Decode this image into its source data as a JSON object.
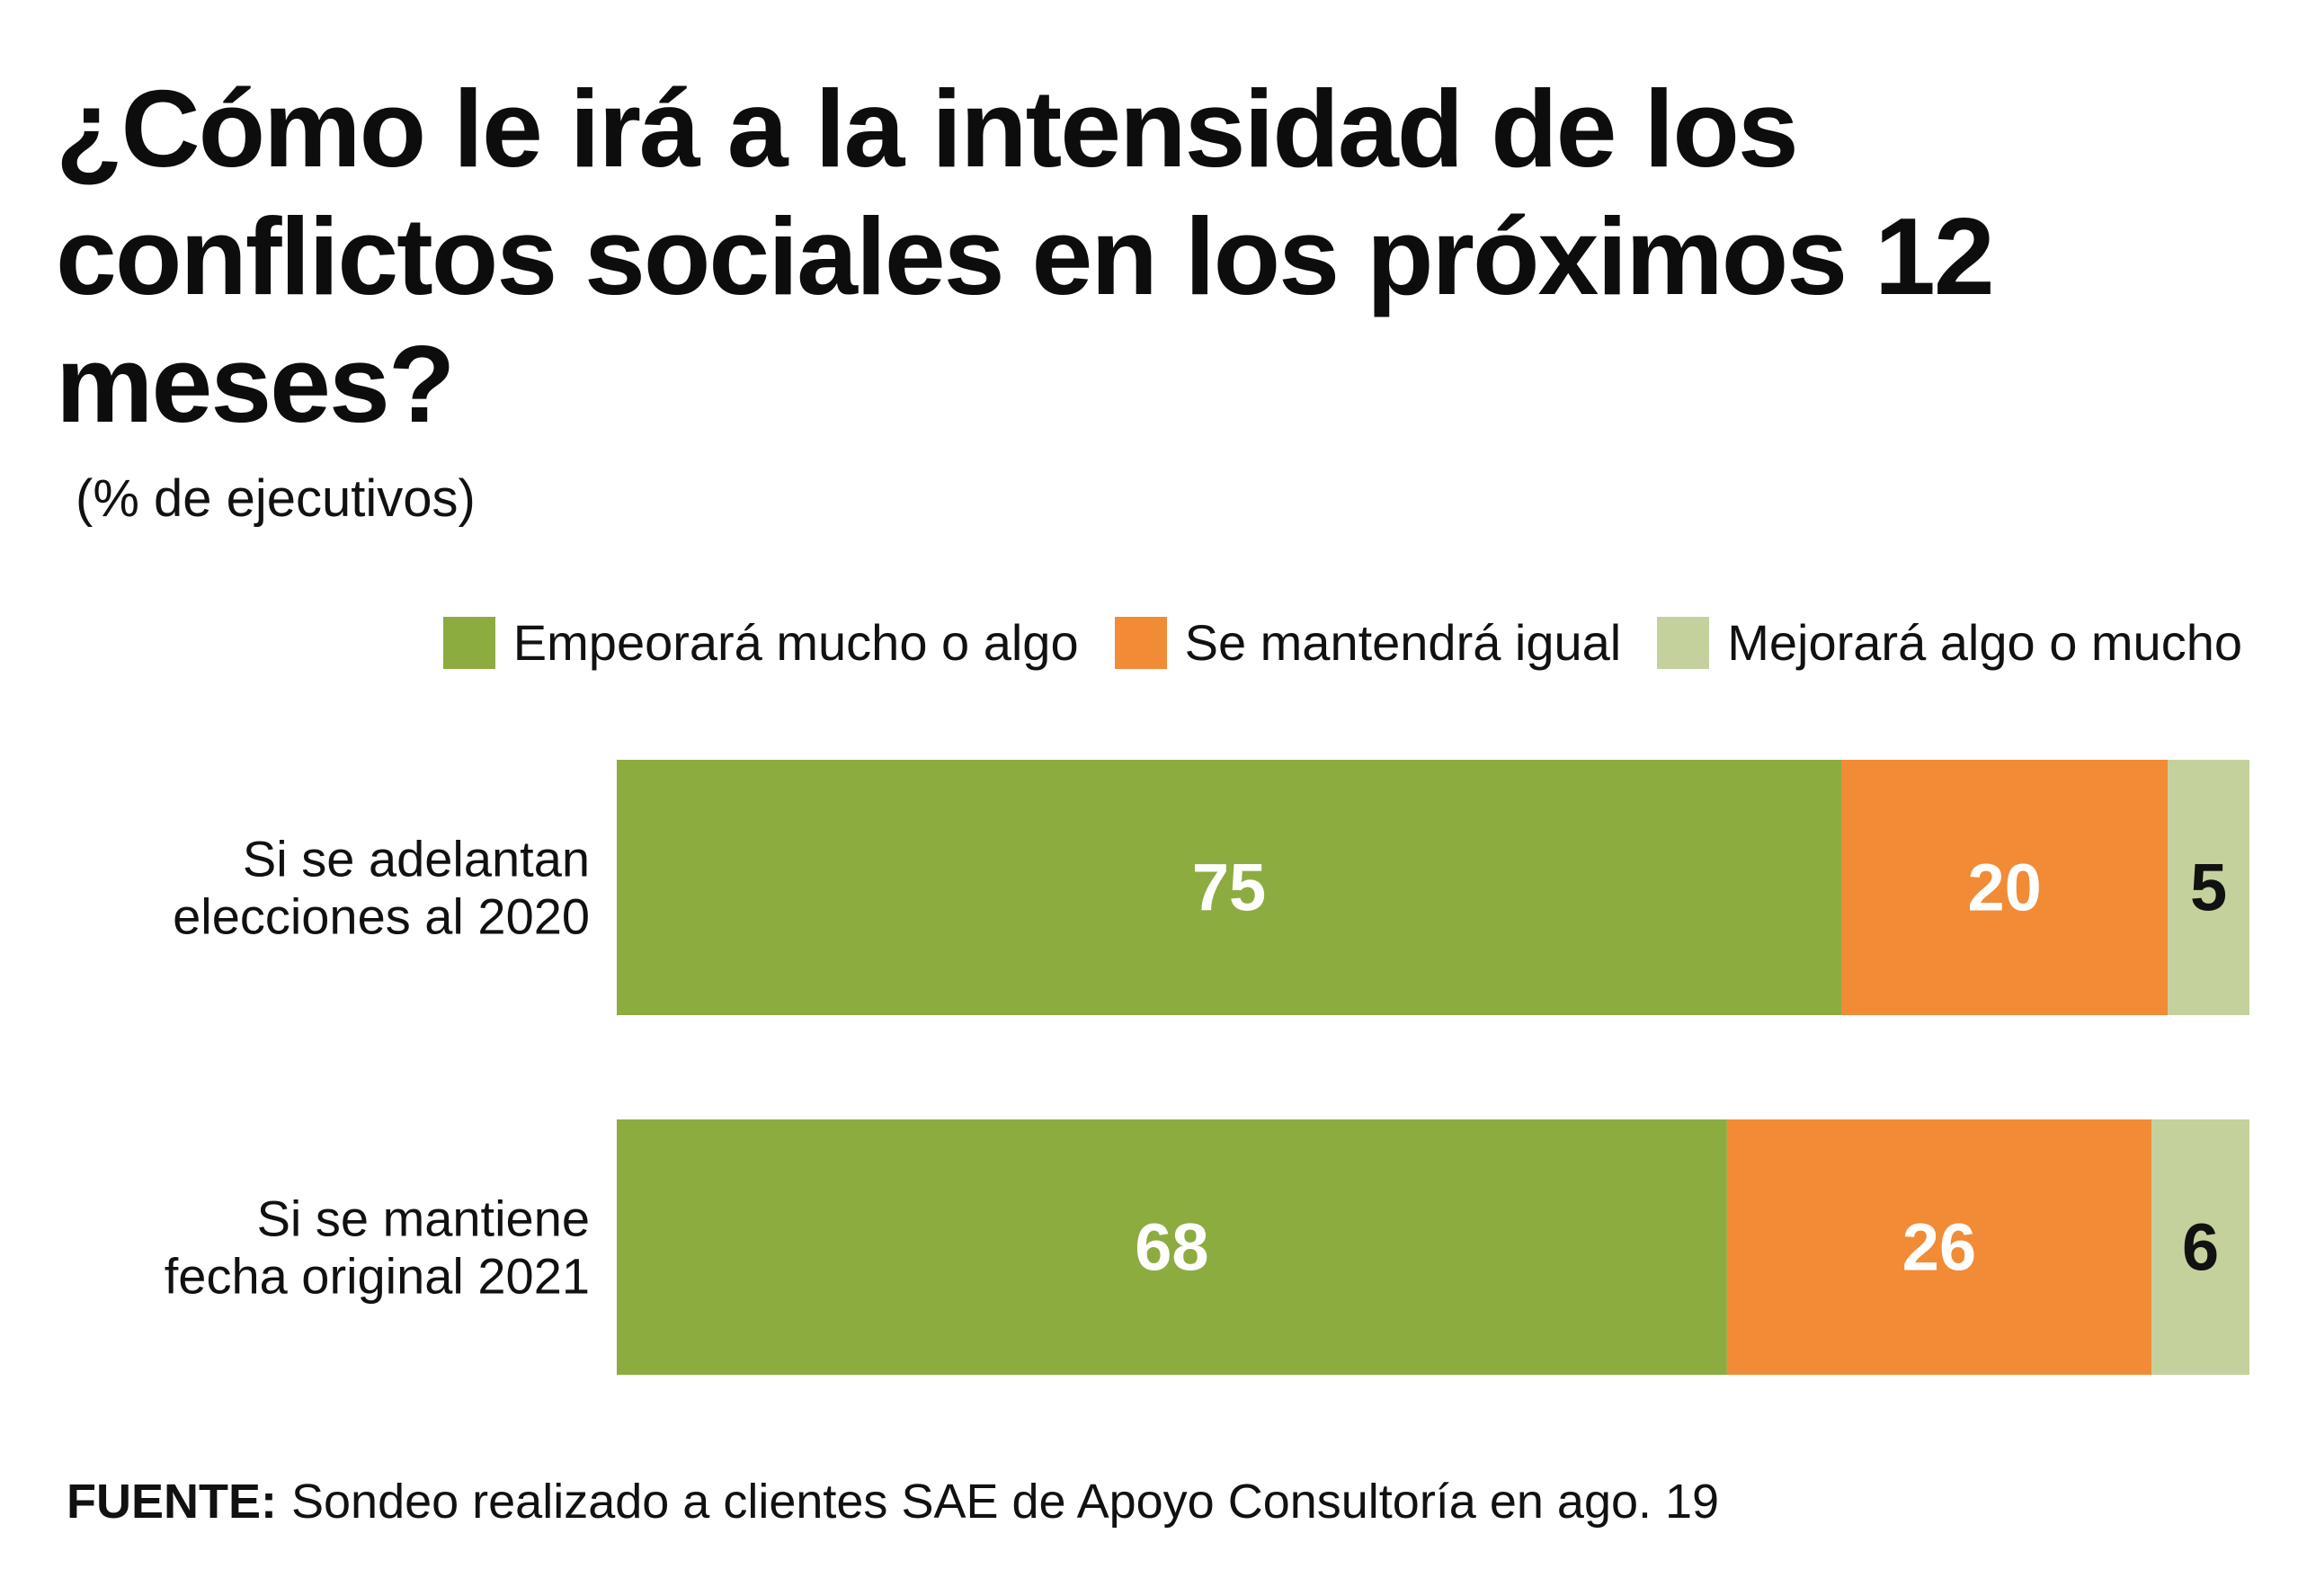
{
  "chart_data": {
    "type": "bar",
    "orientation": "horizontal",
    "stacked": true,
    "title": "¿Cómo le irá a la intensidad de los conflictos sociales en los próximos 12 meses?",
    "subtitle": "(% de ejecutivos)",
    "categories": [
      [
        "Si se adelantan",
        "elecciones al 2020"
      ],
      [
        "Si se mantiene",
        "fecha original 2021"
      ]
    ],
    "series": [
      {
        "name": "Empeorará mucho o algo",
        "color": "#8dac40",
        "label_color": "#ffffff",
        "values": [
          75,
          68
        ]
      },
      {
        "name": "Se mantendrá igual",
        "color": "#f18b35",
        "label_color": "#ffffff",
        "values": [
          20,
          26
        ]
      },
      {
        "name": "Mejorará algo o mucho",
        "color": "#c5d19c",
        "label_color": "#111111",
        "values": [
          5,
          6
        ]
      }
    ],
    "xlim": [
      0,
      100
    ],
    "grid": false,
    "legend_position": "top-right"
  },
  "source": {
    "label": "FUENTE:",
    "text": "Sondeo realizado a clientes SAE de Apoyo Consultoría en ago. 19"
  }
}
